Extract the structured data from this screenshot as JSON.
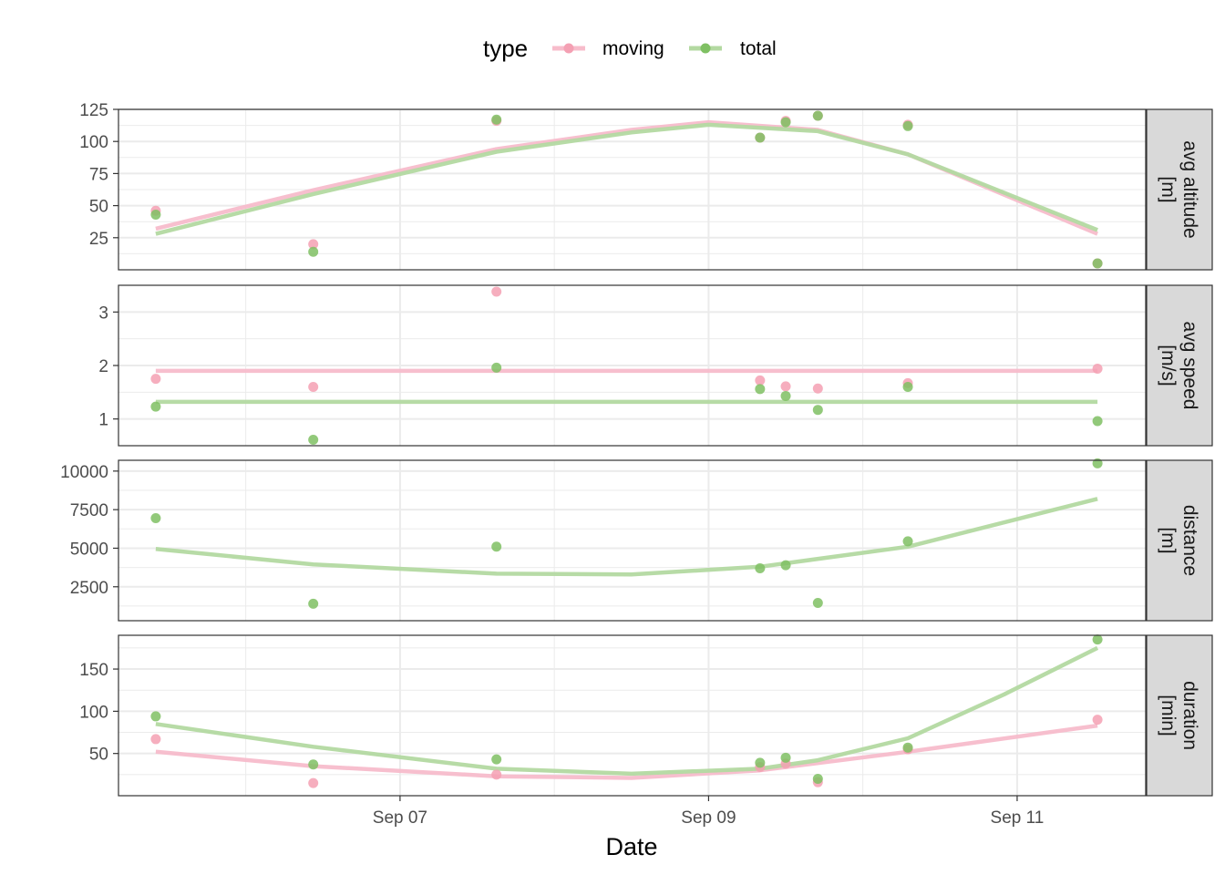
{
  "chart_data": {
    "type": "scatter",
    "xlabel": "Date",
    "x_ticks": [
      {
        "date": "2023-09-07",
        "label": "Sep 07"
      },
      {
        "date": "2023-09-09",
        "label": "Sep 09"
      },
      {
        "date": "2023-09-11",
        "label": "Sep 11"
      }
    ],
    "xlim": [
      "2023-09-05T04:12",
      "2023-09-11T20:00"
    ],
    "legend": {
      "title": "type",
      "position": "top"
    },
    "series_styles": [
      {
        "name": "moving",
        "color": "#f4a0b3",
        "line_color": "#f7bccb"
      },
      {
        "name": "total",
        "color": "#7fc063",
        "line_color": "#b3d9a1"
      }
    ],
    "grid": true,
    "trend": "smooth",
    "panels": [
      {
        "label": [
          "avg altitude",
          "[m]"
        ],
        "ylim": [
          0,
          125
        ],
        "y_ticks": [
          25,
          50,
          75,
          100,
          125
        ],
        "series": [
          {
            "name": "moving",
            "points": [
              {
                "x": "2023-09-05T10:00",
                "y": 46
              },
              {
                "x": "2023-09-06T10:30",
                "y": 20
              },
              {
                "x": "2023-09-07T15:00",
                "y": 116
              },
              {
                "x": "2023-09-09T08:00",
                "y": 103
              },
              {
                "x": "2023-09-09T12:00",
                "y": 116
              },
              {
                "x": "2023-09-09T17:00",
                "y": 120
              },
              {
                "x": "2023-09-10T07:00",
                "y": 113
              },
              {
                "x": "2023-09-11T12:30",
                "y": 5
              }
            ],
            "trend": [
              {
                "x": "2023-09-05T10:00",
                "y": 32
              },
              {
                "x": "2023-09-06T10:30",
                "y": 62
              },
              {
                "x": "2023-09-07T15:00",
                "y": 94
              },
              {
                "x": "2023-09-08T12:00",
                "y": 109
              },
              {
                "x": "2023-09-09T00:00",
                "y": 115
              },
              {
                "x": "2023-09-09T17:00",
                "y": 109
              },
              {
                "x": "2023-09-10T07:00",
                "y": 90
              },
              {
                "x": "2023-09-11T12:30",
                "y": 28
              }
            ]
          },
          {
            "name": "total",
            "points": [
              {
                "x": "2023-09-05T10:00",
                "y": 43
              },
              {
                "x": "2023-09-06T10:30",
                "y": 14
              },
              {
                "x": "2023-09-07T15:00",
                "y": 117
              },
              {
                "x": "2023-09-09T08:00",
                "y": 103
              },
              {
                "x": "2023-09-09T12:00",
                "y": 115
              },
              {
                "x": "2023-09-09T17:00",
                "y": 120
              },
              {
                "x": "2023-09-10T07:00",
                "y": 112
              },
              {
                "x": "2023-09-11T12:30",
                "y": 5
              }
            ],
            "trend": [
              {
                "x": "2023-09-05T10:00",
                "y": 28
              },
              {
                "x": "2023-09-06T10:30",
                "y": 59
              },
              {
                "x": "2023-09-07T15:00",
                "y": 92
              },
              {
                "x": "2023-09-08T12:00",
                "y": 107
              },
              {
                "x": "2023-09-09T00:00",
                "y": 113
              },
              {
                "x": "2023-09-09T17:00",
                "y": 108
              },
              {
                "x": "2023-09-10T07:00",
                "y": 90
              },
              {
                "x": "2023-09-11T12:30",
                "y": 31
              }
            ]
          }
        ]
      },
      {
        "label": [
          "avg speed",
          "[m/s]"
        ],
        "ylim": [
          0.5,
          3.5
        ],
        "y_ticks": [
          1,
          2,
          3
        ],
        "series": [
          {
            "name": "moving",
            "points": [
              {
                "x": "2023-09-05T10:00",
                "y": 1.75
              },
              {
                "x": "2023-09-06T10:30",
                "y": 1.6
              },
              {
                "x": "2023-09-07T15:00",
                "y": 3.38
              },
              {
                "x": "2023-09-09T08:00",
                "y": 1.72
              },
              {
                "x": "2023-09-09T12:00",
                "y": 1.61
              },
              {
                "x": "2023-09-09T17:00",
                "y": 1.57
              },
              {
                "x": "2023-09-10T07:00",
                "y": 1.67
              },
              {
                "x": "2023-09-11T12:30",
                "y": 1.94
              }
            ],
            "trend": [
              {
                "x": "2023-09-05T10:00",
                "y": 1.9
              },
              {
                "x": "2023-09-11T12:30",
                "y": 1.9
              }
            ]
          },
          {
            "name": "total",
            "points": [
              {
                "x": "2023-09-05T10:00",
                "y": 1.23
              },
              {
                "x": "2023-09-06T10:30",
                "y": 0.61
              },
              {
                "x": "2023-09-07T15:00",
                "y": 1.96
              },
              {
                "x": "2023-09-09T08:00",
                "y": 1.56
              },
              {
                "x": "2023-09-09T12:00",
                "y": 1.43
              },
              {
                "x": "2023-09-09T17:00",
                "y": 1.17
              },
              {
                "x": "2023-09-10T07:00",
                "y": 1.6
              },
              {
                "x": "2023-09-11T12:30",
                "y": 0.96
              }
            ],
            "trend": [
              {
                "x": "2023-09-05T10:00",
                "y": 1.32
              },
              {
                "x": "2023-09-11T12:30",
                "y": 1.32
              }
            ]
          }
        ]
      },
      {
        "label": [
          "distance",
          "[m]"
        ],
        "ylim": [
          300,
          10700
        ],
        "y_ticks": [
          2500,
          5000,
          7500,
          10000
        ],
        "series": [
          {
            "name": "total",
            "points": [
              {
                "x": "2023-09-05T10:00",
                "y": 6950
              },
              {
                "x": "2023-09-06T10:30",
                "y": 1400
              },
              {
                "x": "2023-09-07T15:00",
                "y": 5100
              },
              {
                "x": "2023-09-09T08:00",
                "y": 3700
              },
              {
                "x": "2023-09-09T12:00",
                "y": 3900
              },
              {
                "x": "2023-09-09T17:00",
                "y": 1450
              },
              {
                "x": "2023-09-10T07:00",
                "y": 5450
              },
              {
                "x": "2023-09-11T12:30",
                "y": 10500
              }
            ],
            "trend": [
              {
                "x": "2023-09-05T10:00",
                "y": 4950
              },
              {
                "x": "2023-09-06T10:30",
                "y": 3950
              },
              {
                "x": "2023-09-07T15:00",
                "y": 3350
              },
              {
                "x": "2023-09-08T12:00",
                "y": 3300
              },
              {
                "x": "2023-09-09T08:00",
                "y": 3800
              },
              {
                "x": "2023-09-10T07:00",
                "y": 5100
              },
              {
                "x": "2023-09-11T12:30",
                "y": 8200
              }
            ]
          }
        ]
      },
      {
        "label": [
          "duration",
          "[min]"
        ],
        "ylim": [
          0,
          190
        ],
        "y_ticks": [
          50,
          100,
          150
        ],
        "series": [
          {
            "name": "moving",
            "points": [
              {
                "x": "2023-09-05T10:00",
                "y": 67
              },
              {
                "x": "2023-09-06T10:30",
                "y": 15
              },
              {
                "x": "2023-09-07T15:00",
                "y": 25
              },
              {
                "x": "2023-09-09T08:00",
                "y": 34
              },
              {
                "x": "2023-09-09T12:00",
                "y": 38
              },
              {
                "x": "2023-09-09T17:00",
                "y": 16
              },
              {
                "x": "2023-09-10T07:00",
                "y": 55
              },
              {
                "x": "2023-09-11T12:30",
                "y": 90
              }
            ],
            "trend": [
              {
                "x": "2023-09-05T10:00",
                "y": 52
              },
              {
                "x": "2023-09-06T10:30",
                "y": 35
              },
              {
                "x": "2023-09-07T15:00",
                "y": 23
              },
              {
                "x": "2023-09-08T12:00",
                "y": 21
              },
              {
                "x": "2023-09-09T08:00",
                "y": 30
              },
              {
                "x": "2023-09-10T07:00",
                "y": 52
              },
              {
                "x": "2023-09-11T12:30",
                "y": 83
              }
            ]
          },
          {
            "name": "total",
            "points": [
              {
                "x": "2023-09-05T10:00",
                "y": 94
              },
              {
                "x": "2023-09-06T10:30",
                "y": 37
              },
              {
                "x": "2023-09-07T15:00",
                "y": 43
              },
              {
                "x": "2023-09-09T08:00",
                "y": 39
              },
              {
                "x": "2023-09-09T12:00",
                "y": 45
              },
              {
                "x": "2023-09-09T17:00",
                "y": 20
              },
              {
                "x": "2023-09-10T07:00",
                "y": 57
              },
              {
                "x": "2023-09-11T12:30",
                "y": 185
              }
            ],
            "trend": [
              {
                "x": "2023-09-05T10:00",
                "y": 85
              },
              {
                "x": "2023-09-06T10:30",
                "y": 58
              },
              {
                "x": "2023-09-07T15:00",
                "y": 32
              },
              {
                "x": "2023-09-08T12:00",
                "y": 26
              },
              {
                "x": "2023-09-09T08:00",
                "y": 32
              },
              {
                "x": "2023-09-09T17:00",
                "y": 42
              },
              {
                "x": "2023-09-10T07:00",
                "y": 68
              },
              {
                "x": "2023-09-10T22:00",
                "y": 120
              },
              {
                "x": "2023-09-11T12:30",
                "y": 175
              }
            ]
          }
        ]
      }
    ]
  }
}
